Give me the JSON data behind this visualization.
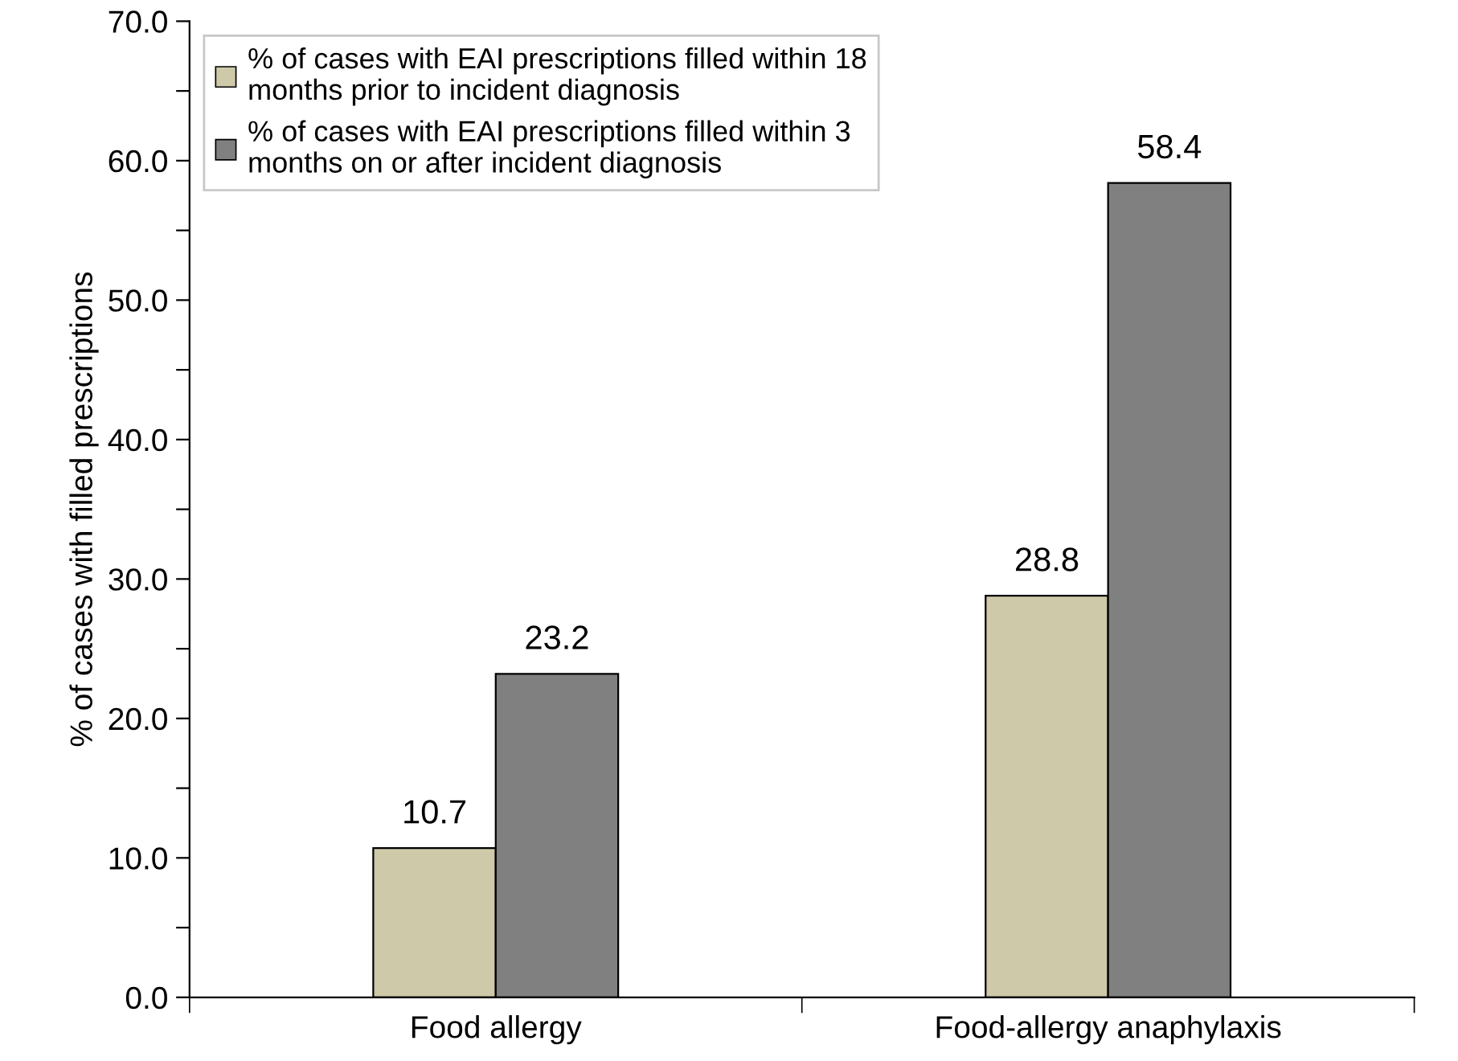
{
  "chart_data": {
    "type": "bar",
    "ylabel": "% of cases with filled prescriptions",
    "categories": [
      "Food allergy",
      "Food-allergy anaphylaxis"
    ],
    "series": [
      {
        "name": "% of cases with EAI prescriptions filled within 18\nmonths prior to incident diagnosis",
        "color": "#cdc9a9",
        "values": [
          10.7,
          28.8
        ]
      },
      {
        "name": "% of cases with EAI prescriptions filled within 3\nmonths on or after incident diagnosis",
        "color": "#808080",
        "values": [
          23.2,
          58.4
        ]
      }
    ],
    "ylim": [
      0,
      70
    ],
    "yticks": [
      {
        "value": 0,
        "label": "0.0"
      },
      {
        "value": 5,
        "label": null
      },
      {
        "value": 10,
        "label": "10.0"
      },
      {
        "value": 15,
        "label": null
      },
      {
        "value": 20,
        "label": "20.0"
      },
      {
        "value": 25,
        "label": null
      },
      {
        "value": 30,
        "label": "30.0"
      },
      {
        "value": 35,
        "label": null
      },
      {
        "value": 40,
        "label": "40.0"
      },
      {
        "value": 45,
        "label": null
      },
      {
        "value": 50,
        "label": "50.0"
      },
      {
        "value": 55,
        "label": null
      },
      {
        "value": 60,
        "label": "60.0"
      },
      {
        "value": 65,
        "label": null
      },
      {
        "value": 70,
        "label": "70.0"
      }
    ],
    "data_labels": true,
    "grid": false,
    "legend": "top left"
  }
}
